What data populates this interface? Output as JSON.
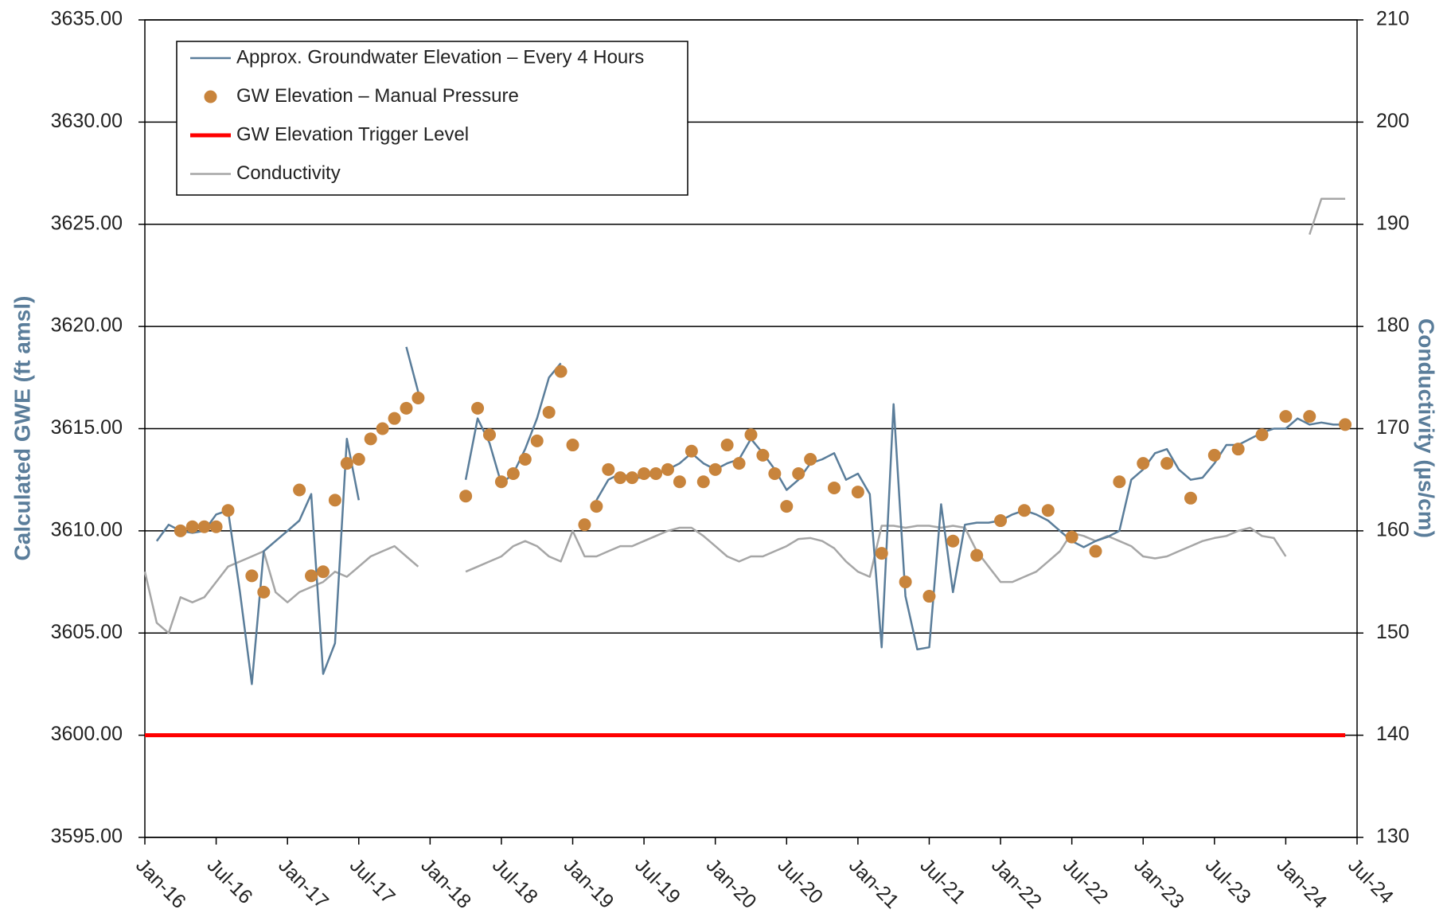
{
  "chart_data": {
    "type": "line",
    "y_label": "Calculated GWE (ft amsl)",
    "y2_label": "Conductivity (µs/cm)",
    "legend": "upper left",
    "grid": true,
    "x": [
      "Jan-16",
      "Feb-16",
      "Mar-16",
      "Apr-16",
      "May-16",
      "Jun-16",
      "Jul-16",
      "Aug-16",
      "Sep-16",
      "Oct-16",
      "Nov-16",
      "Dec-16",
      "Jan-17",
      "Feb-17",
      "Mar-17",
      "Apr-17",
      "May-17",
      "Jun-17",
      "Jul-17",
      "Aug-17",
      "Sep-17",
      "Oct-17",
      "Nov-17",
      "Dec-17",
      "Jan-18",
      "Feb-18",
      "Mar-18",
      "Apr-18",
      "May-18",
      "Jun-18",
      "Jul-18",
      "Aug-18",
      "Sep-18",
      "Oct-18",
      "Nov-18",
      "Dec-18",
      "Jan-19",
      "Feb-19",
      "Mar-19",
      "Apr-19",
      "May-19",
      "Jun-19",
      "Jul-19",
      "Aug-19",
      "Sep-19",
      "Oct-19",
      "Nov-19",
      "Dec-19",
      "Jan-20",
      "Feb-20",
      "Mar-20",
      "Apr-20",
      "May-20",
      "Jun-20",
      "Jul-20",
      "Aug-20",
      "Sep-20",
      "Oct-20",
      "Nov-20",
      "Dec-20",
      "Jan-21",
      "Feb-21",
      "Mar-21",
      "Apr-21",
      "May-21",
      "Jun-21",
      "Jul-21",
      "Aug-21",
      "Sep-21",
      "Oct-21",
      "Nov-21",
      "Dec-21",
      "Jan-22",
      "Feb-22",
      "Mar-22",
      "Apr-22",
      "May-22",
      "Jun-22",
      "Jul-22",
      "Aug-22",
      "Sep-22",
      "Oct-22",
      "Nov-22",
      "Dec-22",
      "Jan-23",
      "Feb-23",
      "Mar-23",
      "Apr-23",
      "May-23",
      "Jun-23",
      "Jul-23",
      "Aug-23",
      "Sep-23",
      "Oct-23",
      "Nov-23",
      "Dec-23",
      "Jan-24",
      "Feb-24",
      "Mar-24",
      "Apr-24",
      "May-24",
      "Jun-24",
      "Jul-24"
    ],
    "xlim": [
      "Jan-16",
      "Jul-24"
    ],
    "xticks": [
      "Jan-16",
      "Jul-16",
      "Jan-17",
      "Jul-17",
      "Jan-18",
      "Jul-18",
      "Jan-19",
      "Jul-19",
      "Jan-20",
      "Jul-20",
      "Jan-21",
      "Jul-21",
      "Jan-22",
      "Jul-22",
      "Jan-23",
      "Jul-23",
      "Jan-24",
      "Jul-24"
    ],
    "ylim": [
      3595,
      3635
    ],
    "yticks": [
      {
        "value": 3595,
        "label": "3595.00"
      },
      {
        "value": 3600,
        "label": "3600.00"
      },
      {
        "value": 3605,
        "label": "3605.00"
      },
      {
        "value": 3610,
        "label": "3610.00"
      },
      {
        "value": 3615,
        "label": "3615.00"
      },
      {
        "value": 3620,
        "label": "3620.00"
      },
      {
        "value": 3625,
        "label": "3625.00"
      },
      {
        "value": 3630,
        "label": "3630.00"
      },
      {
        "value": 3635,
        "label": "3635.00"
      }
    ],
    "y2lim": [
      130,
      210
    ],
    "y2ticks": [
      130,
      140,
      150,
      160,
      170,
      180,
      190,
      200,
      210
    ],
    "series": [
      {
        "name": "Approx. Groundwater Elevation – Every 4 Hours",
        "type": "line",
        "color": "#5a7d9a",
        "values": [
          null,
          3609.5,
          3610.3,
          3610.0,
          3609.9,
          3610.0,
          3610.8,
          3611.0,
          3607.0,
          3602.5,
          3609.0,
          3609.5,
          3610.0,
          3610.5,
          3611.8,
          3603.0,
          3604.5,
          3614.5,
          3611.5,
          null,
          null,
          null,
          3619.0,
          3616.8,
          null,
          null,
          null,
          3612.5,
          3615.5,
          3614.3,
          3612.3,
          3612.8,
          3614.0,
          3615.5,
          3617.5,
          3618.2,
          null,
          null,
          3611.5,
          3612.5,
          3612.8,
          3612.6,
          3612.6,
          3612.8,
          3613.0,
          3613.3,
          3613.8,
          3613.3,
          3613.0,
          3613.3,
          3613.5,
          3614.5,
          3613.8,
          3613.0,
          3612.0,
          3612.5,
          3613.3,
          3613.5,
          3613.8,
          3612.5,
          3612.8,
          3611.8,
          3604.3,
          3616.2,
          3606.8,
          3604.2,
          3604.3,
          3611.3,
          3607.0,
          3610.3,
          3610.4,
          3610.4,
          3610.5,
          3610.8,
          3611.0,
          3610.8,
          3610.5,
          3610.0,
          3609.5,
          3609.2,
          3609.5,
          3609.7,
          3610.0,
          3612.5,
          3613.0,
          3613.8,
          3614.0,
          3613.0,
          3612.5,
          3612.6,
          3613.3,
          3614.2,
          3614.2,
          3614.5,
          3614.8,
          3615.0,
          3615.0,
          3615.5,
          3615.2,
          3615.3,
          3615.2,
          3615.2,
          null
        ]
      },
      {
        "name": "GW Elevation – Manual Pressure",
        "type": "scatter",
        "color": "#c8843c",
        "x": [
          "Apr-16",
          "May-16",
          "Jun-16",
          "Jul-16",
          "Aug-16",
          "Oct-16",
          "Nov-16",
          "Feb-17",
          "Mar-17",
          "Apr-17",
          "May-17",
          "Jun-17",
          "Jul-17",
          "Aug-17",
          "Sep-17",
          "Oct-17",
          "Nov-17",
          "Dec-17",
          "Apr-18",
          "May-18",
          "Jun-18",
          "Jul-18",
          "Aug-18",
          "Sep-18",
          "Oct-18",
          "Nov-18",
          "Dec-18",
          "Jan-19",
          "Feb-19",
          "Mar-19",
          "Apr-19",
          "May-19",
          "Jun-19",
          "Jul-19",
          "Aug-19",
          "Sep-19",
          "Oct-19",
          "Nov-19",
          "Dec-19",
          "Jan-20",
          "Feb-20",
          "Mar-20",
          "Apr-20",
          "May-20",
          "Jun-20",
          "Jul-20",
          "Aug-20",
          "Sep-20",
          "Nov-20",
          "Jan-21",
          "Mar-21",
          "May-21",
          "Jul-21",
          "Sep-21",
          "Nov-21",
          "Jan-22",
          "Mar-22",
          "May-22",
          "Jul-22",
          "Sep-22",
          "Nov-22",
          "Jan-23",
          "Mar-23",
          "May-23",
          "Jul-23",
          "Sep-23",
          "Nov-23",
          "Jan-24",
          "Mar-24",
          "Jun-24"
        ],
        "values": [
          3610.0,
          3610.2,
          3610.2,
          3610.2,
          3611.0,
          3607.8,
          3607.0,
          3612.0,
          3607.8,
          3608.0,
          3611.5,
          3613.3,
          3613.5,
          3614.5,
          3615.0,
          3615.5,
          3616.0,
          3616.5,
          3611.7,
          3616.0,
          3614.7,
          3612.4,
          3612.8,
          3613.5,
          3614.4,
          3615.8,
          3617.8,
          3614.2,
          3610.3,
          3611.2,
          3613.0,
          3612.6,
          3612.6,
          3612.8,
          3612.8,
          3613.0,
          3612.4,
          3613.9,
          3612.4,
          3613.0,
          3614.2,
          3613.3,
          3614.7,
          3613.7,
          3612.8,
          3611.2,
          3612.8,
          3613.5,
          3612.1,
          3611.9,
          3608.9,
          3607.5,
          3606.8,
          3609.5,
          3608.8,
          3610.5,
          3611.0,
          3611.0,
          3609.7,
          3609.0,
          3612.4,
          3613.3,
          3613.3,
          3611.6,
          3613.7,
          3614.0,
          3614.7,
          3615.6,
          3615.6,
          3615.2
        ]
      },
      {
        "name": "GW Elevation Trigger Level",
        "type": "line",
        "color": "#ff0000",
        "width": 5,
        "x": [
          "Jan-16",
          "Jun-24"
        ],
        "values": [
          3600,
          3600
        ]
      },
      {
        "name": "Conductivity",
        "type": "line",
        "color": "#a6a6a6",
        "axis": "y2",
        "values": [
          156,
          151,
          150,
          153.5,
          153,
          153.5,
          155,
          156.5,
          157,
          157.5,
          158,
          154,
          153,
          154,
          154.5,
          155,
          156,
          155.5,
          156.5,
          157.5,
          158,
          158.5,
          157.5,
          156.5,
          null,
          null,
          null,
          156,
          156.5,
          157,
          157.5,
          158.5,
          159,
          158.5,
          157.5,
          157,
          160,
          157.5,
          157.5,
          158,
          158.5,
          158.5,
          159,
          159.5,
          160,
          160.3,
          160.3,
          159.5,
          158.5,
          157.5,
          157,
          157.5,
          157.5,
          158,
          158.5,
          159.2,
          159.3,
          159,
          158.3,
          157,
          156,
          155.5,
          160.5,
          160.5,
          160.3,
          160.5,
          160.5,
          160.3,
          160.5,
          160.3,
          158,
          156.5,
          155,
          155,
          155.5,
          156,
          157,
          158,
          159.8,
          159.5,
          159,
          159.5,
          159,
          158.5,
          157.5,
          157.3,
          157.5,
          158,
          158.5,
          159,
          159.3,
          159.5,
          160,
          160.3,
          159.5,
          159.3,
          157.5,
          null,
          189,
          192.5,
          192.5,
          192.5,
          null
        ]
      }
    ]
  }
}
